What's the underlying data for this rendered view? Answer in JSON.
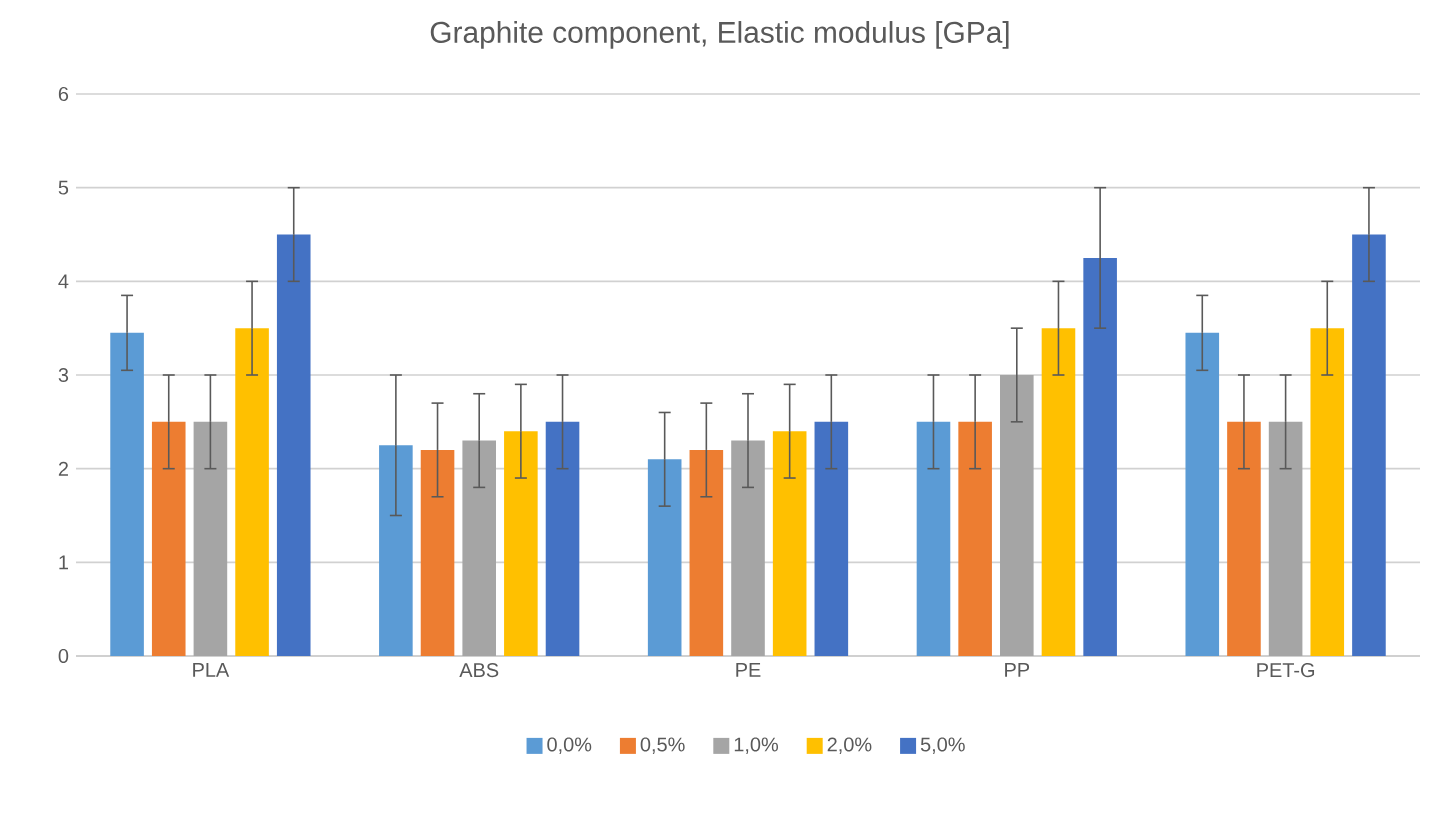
{
  "chart_data": {
    "type": "bar",
    "title": "Graphite component, Elastic modulus [GPa]",
    "categories": [
      "PLA",
      "ABS",
      "PE",
      "PP",
      "PET-G"
    ],
    "series": [
      {
        "name": "0,0%",
        "color": "#5b9bd5",
        "values": [
          3.45,
          2.25,
          2.1,
          2.5,
          3.45
        ],
        "errors": [
          0.4,
          0.75,
          0.5,
          0.5,
          0.4
        ]
      },
      {
        "name": "0,5%",
        "color": "#ed7d31",
        "values": [
          2.5,
          2.2,
          2.2,
          2.5,
          2.5
        ],
        "errors": [
          0.5,
          0.5,
          0.5,
          0.5,
          0.5
        ]
      },
      {
        "name": "1,0%",
        "color": "#a5a5a5",
        "values": [
          2.5,
          2.3,
          2.3,
          3.0,
          2.5
        ],
        "errors": [
          0.5,
          0.5,
          0.5,
          0.5,
          0.5
        ]
      },
      {
        "name": "2,0%",
        "color": "#ffc000",
        "values": [
          3.5,
          2.4,
          2.4,
          3.5,
          3.5
        ],
        "errors": [
          0.5,
          0.5,
          0.5,
          0.5,
          0.5
        ]
      },
      {
        "name": "5,0%",
        "color": "#4472c4",
        "values": [
          4.5,
          2.5,
          2.5,
          4.25,
          4.5
        ],
        "errors": [
          0.5,
          0.5,
          0.5,
          0.75,
          0.5
        ]
      }
    ],
    "ylim": [
      0,
      6
    ],
    "yticks": [
      0,
      1,
      2,
      3,
      4,
      5,
      6
    ],
    "grid": "y",
    "legend": "bottom"
  }
}
